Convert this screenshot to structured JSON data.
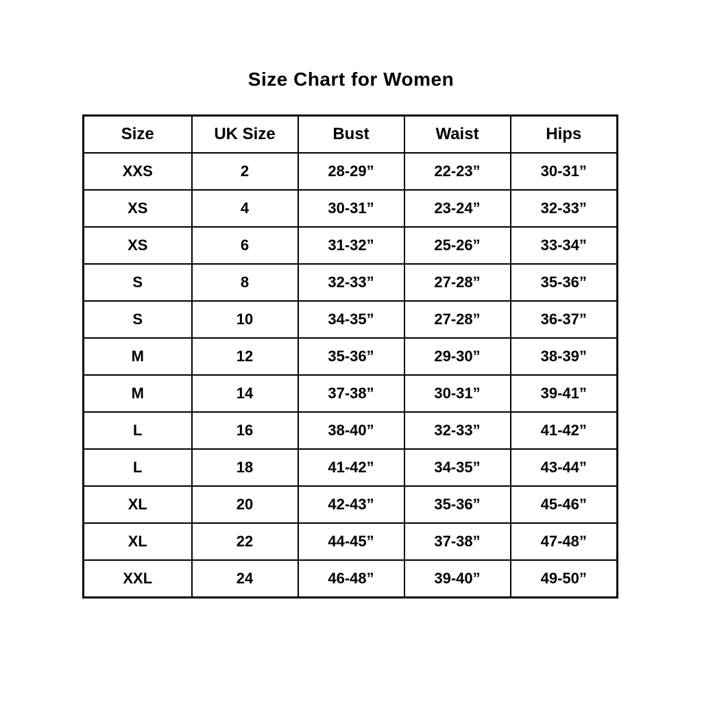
{
  "title": "Size Chart for Women",
  "colors": {
    "text": "#000000",
    "border": "#000000",
    "background": "#ffffff"
  },
  "chart_data": {
    "type": "table",
    "title": "Size Chart for Women",
    "columns": [
      "Size",
      "UK Size",
      "Bust",
      "Waist",
      "Hips"
    ],
    "rows": [
      [
        "XXS",
        "2",
        "28-29”",
        "22-23”",
        "30-31”"
      ],
      [
        "XS",
        "4",
        "30-31”",
        "23-24”",
        "32-33”"
      ],
      [
        "XS",
        "6",
        "31-32”",
        "25-26”",
        "33-34”"
      ],
      [
        "S",
        "8",
        "32-33”",
        "27-28”",
        "35-36”"
      ],
      [
        "S",
        "10",
        "34-35”",
        "27-28”",
        "36-37”"
      ],
      [
        "M",
        "12",
        "35-36”",
        "29-30”",
        "38-39”"
      ],
      [
        "M",
        "14",
        "37-38”",
        "30-31”",
        "39-41”"
      ],
      [
        "L",
        "16",
        "38-40”",
        "32-33”",
        "41-42”"
      ],
      [
        "L",
        "18",
        "41-42”",
        "34-35”",
        "43-44”"
      ],
      [
        "XL",
        "20",
        "42-43”",
        "35-36”",
        "45-46”"
      ],
      [
        "XL",
        "22",
        "44-45”",
        "37-38”",
        "47-48”"
      ],
      [
        "XXL",
        "24",
        "46-48”",
        "39-40”",
        "49-50”"
      ]
    ]
  }
}
